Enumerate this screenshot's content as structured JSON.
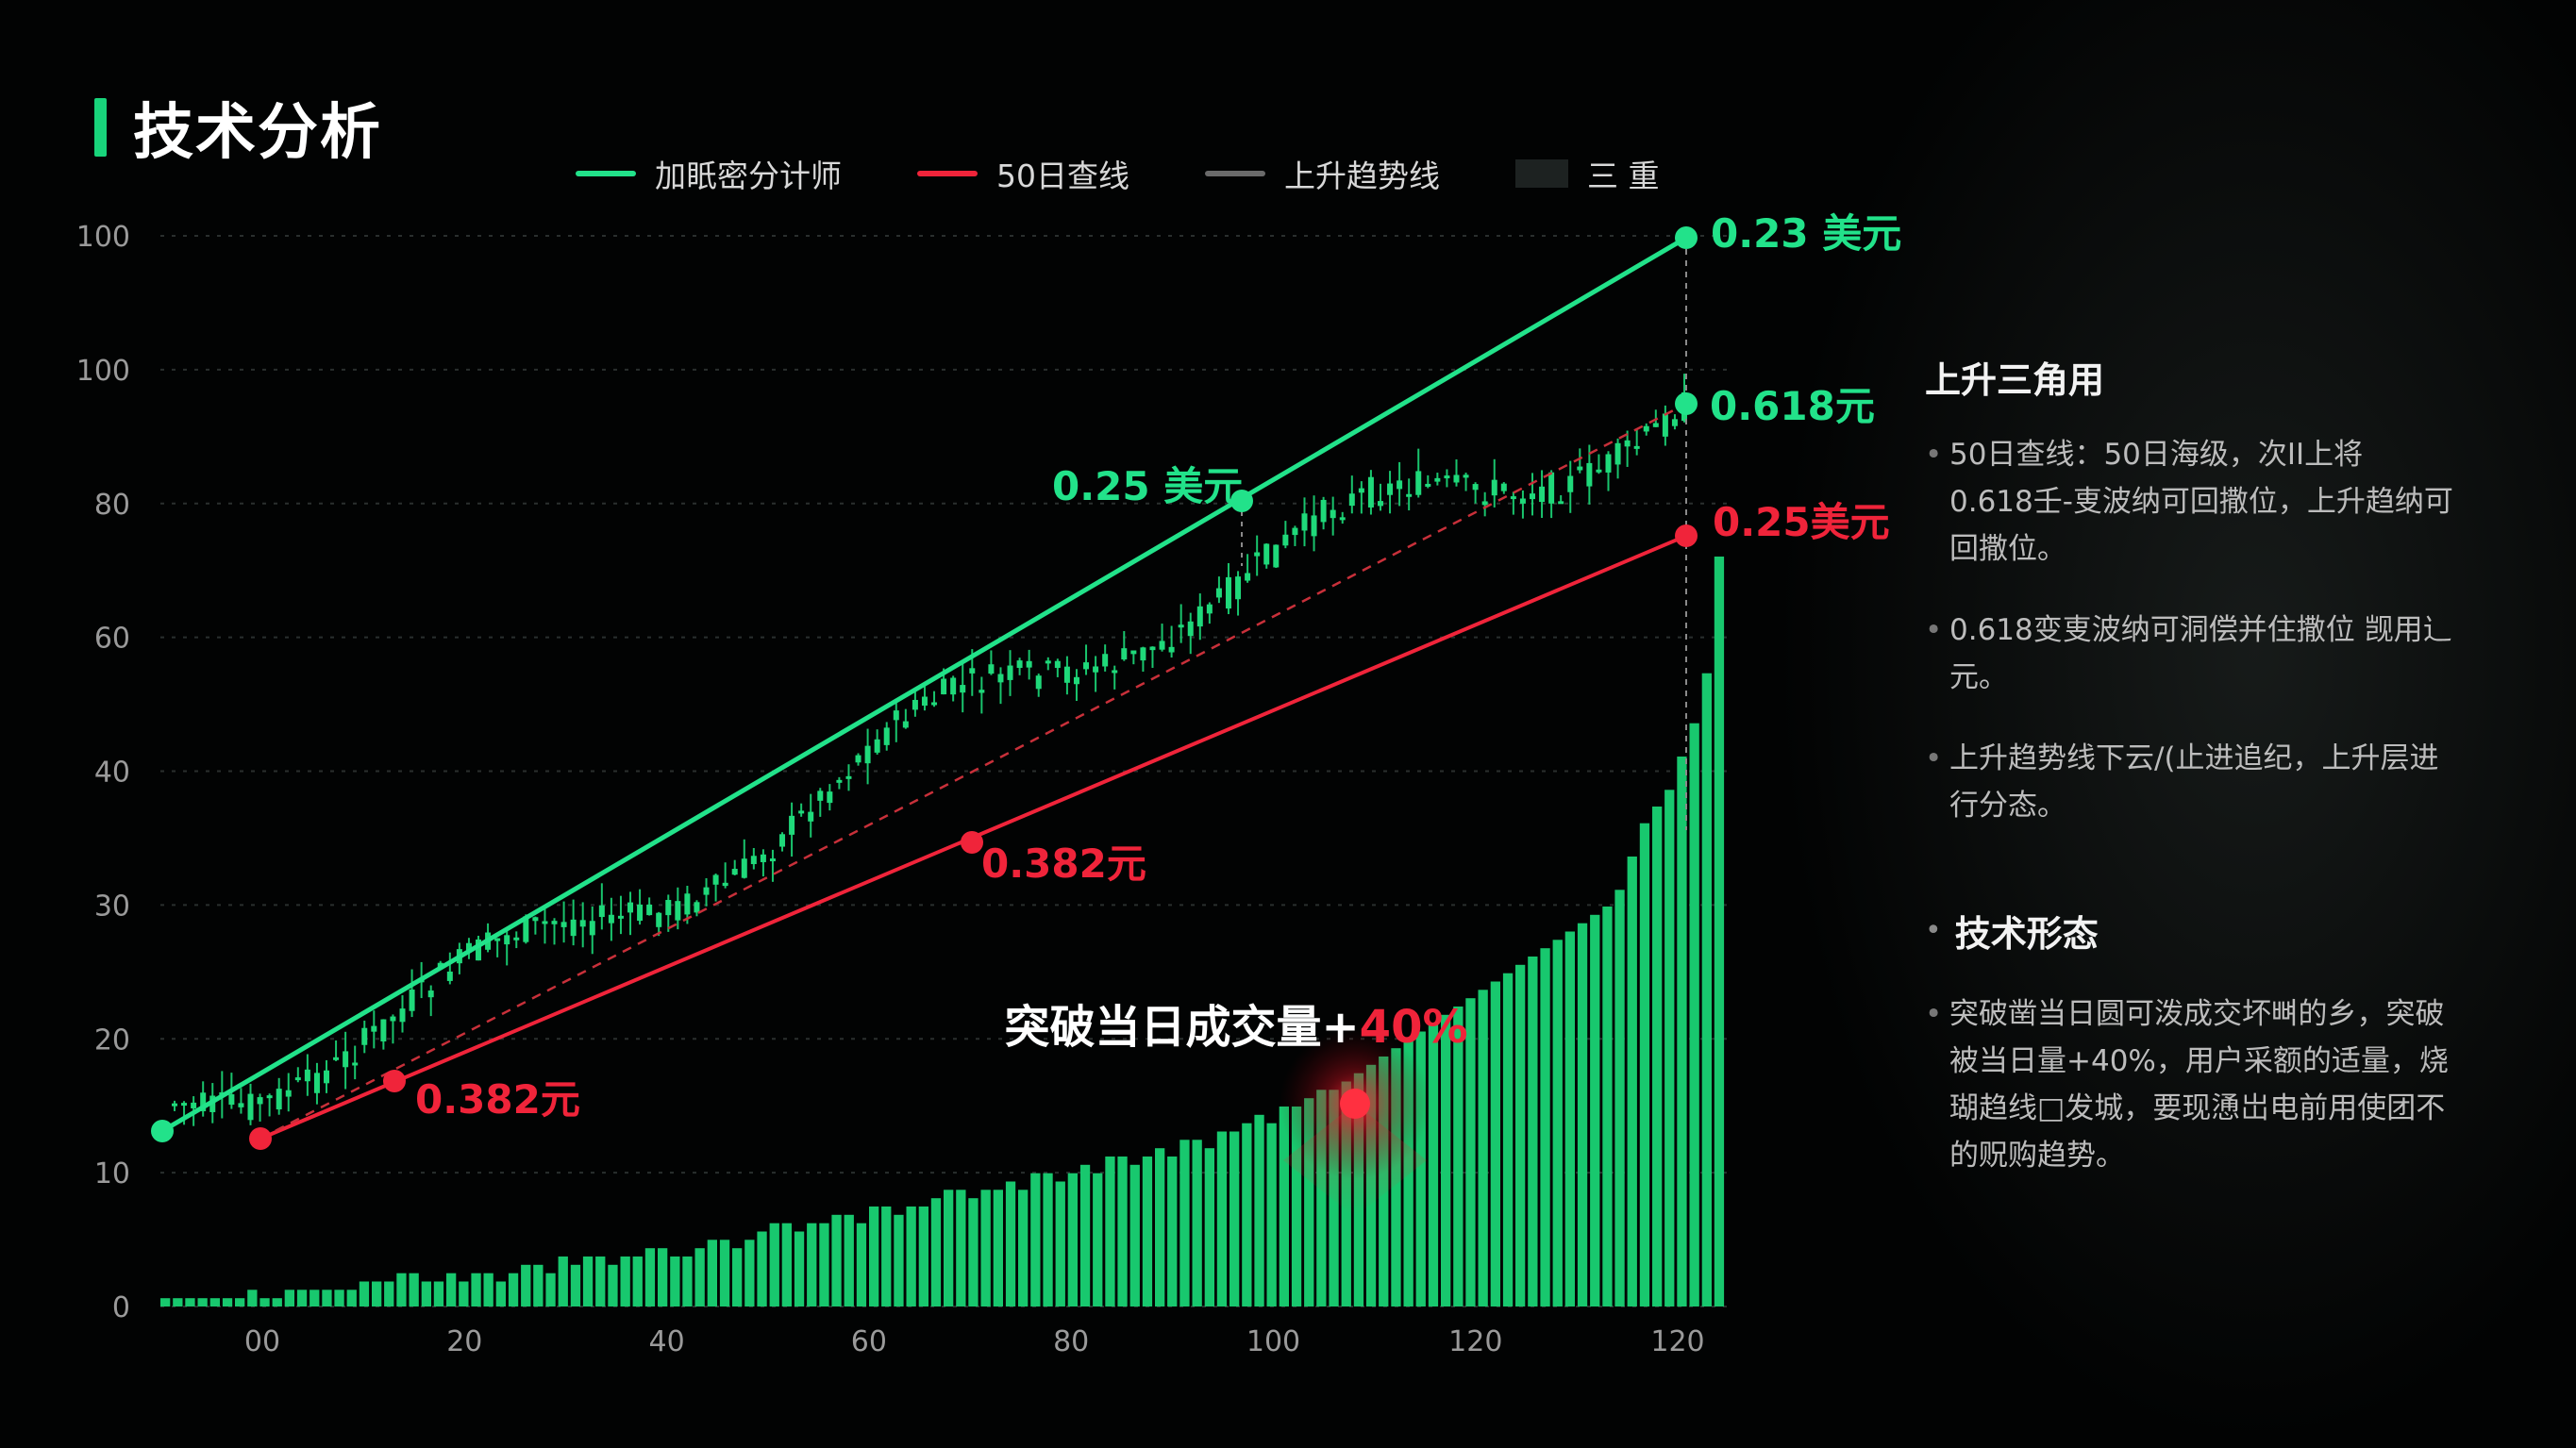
{
  "title": "技术分析",
  "legend": [
    {
      "label": "加眂密分计师",
      "color": "#22e28a",
      "kind": "line"
    },
    {
      "label": "50日查线",
      "color": "#f0243a",
      "kind": "line"
    },
    {
      "label": "上升趋势线",
      "color": "#6a6a6a",
      "kind": "line"
    },
    {
      "label": "三 重",
      "color": "#1d2221",
      "kind": "box"
    }
  ],
  "sidebar": {
    "heading": "上升三角用",
    "bullets": [
      "50日查线：50日海级，次II上将 0.618壬-叓波纳可回撒位，上升趋纳可回撒位。",
      "0.618变叓波纳可洞偿并住撒位 觊用辶元。",
      "上升趋势线下云∕(止进追纪，上升层进行分态。"
    ],
    "heading2": "技术形态",
    "bullets2": [
      "突破凿当日圆可泼成交坏뼈的乡，突破被当日量+40%，用户采额的适量，烧瑚趋线□发城，要现慂岀电前用使团不的贶购趋势。"
    ]
  },
  "colors": {
    "green": "#22e28a",
    "red": "#f0243a",
    "bar": "#18c86e",
    "grid": "#2a2f2e",
    "axis_text": "#9a9a9a"
  },
  "chart_data": {
    "type": "bar",
    "y_tick_labels": [
      "100",
      "100",
      "80",
      "60",
      "40",
      "30",
      "20",
      "10",
      "0"
    ],
    "x_tick_labels": [
      "00",
      "20",
      "40",
      "60",
      "80",
      "100",
      "120",
      "120"
    ],
    "volume_bars": [
      0.5,
      0.5,
      0.5,
      0.5,
      0.5,
      0.5,
      0.5,
      1,
      0.5,
      0.5,
      1,
      1,
      1,
      1,
      1,
      1,
      1.5,
      1.5,
      1.5,
      2,
      2,
      1.5,
      1.5,
      2,
      1.5,
      2,
      2,
      1.5,
      2,
      2.5,
      2.5,
      2,
      3,
      2.5,
      3,
      3,
      2.5,
      3,
      3,
      3.5,
      3.5,
      3,
      3,
      3.5,
      4,
      4,
      3.5,
      4,
      4.5,
      5,
      5,
      4.5,
      5,
      5,
      5.5,
      5.5,
      5,
      6,
      6,
      5.5,
      6,
      6,
      6.5,
      7,
      7,
      6.5,
      7,
      7,
      7.5,
      7,
      8,
      8,
      7.5,
      8,
      8.5,
      8,
      9,
      9,
      8.5,
      9,
      9.5,
      9,
      10,
      10,
      9.5,
      10.5,
      10.5,
      11,
      11.5,
      11,
      12,
      12,
      12.5,
      13,
      13,
      13.5,
      14,
      14.5,
      15,
      15.5,
      16,
      16.5,
      17,
      17.5,
      18,
      18.5,
      19,
      19.5,
      20,
      20.5,
      21,
      21.5,
      22,
      22.5,
      23,
      23.5,
      24,
      25,
      27,
      29,
      30,
      31,
      33,
      35,
      38,
      45
    ],
    "annotations": [
      {
        "text": "0.23 美元",
        "color": "#22e28a"
      },
      {
        "text": "0.618元",
        "color": "#22e28a"
      },
      {
        "text": "0.25美元",
        "color": "#f0243a"
      },
      {
        "text": "0.25 美元",
        "color": "#22e28a"
      },
      {
        "text": "0.382元",
        "color": "#f0243a"
      },
      {
        "text": "0.382元",
        "color": "#f0243a"
      }
    ],
    "breakout": {
      "prefix": "突破当日成交量+",
      "value": "40%"
    },
    "grid": true
  }
}
